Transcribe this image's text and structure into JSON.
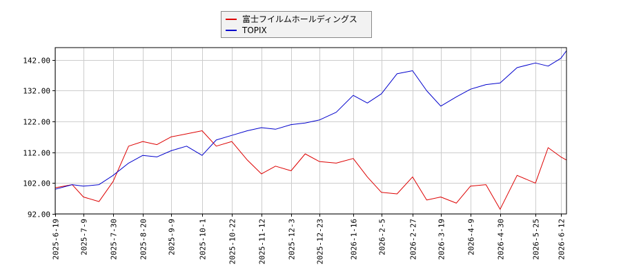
{
  "chart_data": {
    "type": "line",
    "title": "",
    "xlabel": "",
    "ylabel": "",
    "ylim": [
      92,
      146
    ],
    "yticks": [
      "92.00",
      "102.00",
      "112.00",
      "122.00",
      "132.00",
      "142.00"
    ],
    "xticks": [
      "2025-6-19",
      "2025-7-9",
      "2025-7-30",
      "2025-8-20",
      "2025-9-9",
      "2025-10-1",
      "2025-10-22",
      "2025-11-12",
      "2025-12-3",
      "2025-12-23",
      "2026-1-16",
      "2026-2-5",
      "2026-2-27",
      "2026-3-19",
      "2026-4-9",
      "2026-4-30",
      "2026-5-25",
      "2026-6-12"
    ],
    "grid": true,
    "legend_position": "top-center",
    "x": [
      "2025-6-19",
      "2025-7-1",
      "2025-7-9",
      "2025-7-20",
      "2025-7-30",
      "2025-8-10",
      "2025-8-20",
      "2025-8-30",
      "2025-9-9",
      "2025-9-20",
      "2025-10-1",
      "2025-10-11",
      "2025-10-22",
      "2025-11-2",
      "2025-11-12",
      "2025-11-22",
      "2025-12-3",
      "2025-12-13",
      "2025-12-23",
      "2026-1-4",
      "2026-1-16",
      "2026-1-26",
      "2026-2-5",
      "2026-2-16",
      "2026-2-27",
      "2026-3-9",
      "2026-3-19",
      "2026-3-30",
      "2026-4-9",
      "2026-4-20",
      "2026-4-30",
      "2026-5-12",
      "2026-5-25",
      "2026-6-3",
      "2026-6-12",
      "2026-6-16"
    ],
    "series": [
      {
        "name": "富士フイルムホールディングス",
        "color": "#dd0000",
        "values": [
          100.5,
          101.5,
          97.5,
          96.0,
          102.5,
          114.0,
          115.5,
          114.5,
          117.0,
          118.0,
          119.0,
          114.0,
          115.5,
          109.5,
          105.0,
          107.5,
          106.0,
          111.5,
          109.0,
          108.5,
          110.0,
          104.0,
          99.0,
          98.5,
          104.0,
          96.5,
          97.5,
          95.5,
          101.0,
          101.5,
          93.5,
          104.5,
          102.0,
          113.5,
          110.5,
          109.5
        ]
      },
      {
        "name": "TOPIX",
        "color": "#0000cc",
        "values": [
          100.0,
          101.5,
          101.0,
          101.5,
          104.5,
          108.5,
          111.0,
          110.5,
          112.5,
          114.0,
          111.0,
          116.0,
          117.5,
          119.0,
          120.0,
          119.5,
          121.0,
          121.5,
          122.5,
          125.0,
          130.5,
          128.0,
          131.0,
          137.5,
          138.5,
          132.0,
          127.0,
          130.0,
          132.5,
          134.0,
          134.5,
          139.5,
          141.0,
          140.0,
          142.5,
          145.0
        ]
      }
    ]
  }
}
